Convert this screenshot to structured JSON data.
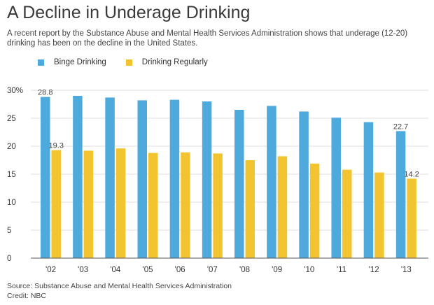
{
  "title": "A Decline in Underage Drinking",
  "subtitle": "A recent report by the Substance Abuse and Mental Health Services Administration shows that underage (12-20) drinking has been on the decline in the United States.",
  "source": "Source: Substance Abuse and Mental Health Services Administration",
  "credit": "Credit: NBC",
  "colors": {
    "binge": "#4ea9dc",
    "regular": "#f2c530",
    "grid": "#dddddd",
    "axis": "#555555"
  },
  "chart_data": {
    "type": "bar",
    "categories": [
      "'02",
      "'03",
      "'04",
      "'05",
      "'06",
      "'07",
      "'08",
      "'09",
      "'10",
      "'11",
      "'12",
      "'13"
    ],
    "series": [
      {
        "name": "Binge Drinking",
        "values": [
          28.8,
          29.0,
          28.7,
          28.2,
          28.3,
          28.0,
          26.5,
          27.2,
          26.2,
          25.1,
          24.3,
          22.7
        ]
      },
      {
        "name": "Drinking Regularly",
        "values": [
          19.3,
          19.2,
          19.6,
          18.8,
          18.9,
          18.7,
          17.5,
          18.2,
          16.9,
          15.8,
          15.3,
          14.2
        ]
      }
    ],
    "ylim": [
      0,
      30
    ],
    "yticks": [
      "0",
      "5",
      "10",
      "15",
      "20",
      "25",
      "30%"
    ],
    "data_labels": [
      {
        "series": 0,
        "index": 0,
        "text": "28.8"
      },
      {
        "series": 1,
        "index": 0,
        "text": "19.3"
      },
      {
        "series": 0,
        "index": 11,
        "text": "22.7"
      },
      {
        "series": 1,
        "index": 11,
        "text": "14.2"
      }
    ],
    "grid": true,
    "legend": "top-left"
  }
}
